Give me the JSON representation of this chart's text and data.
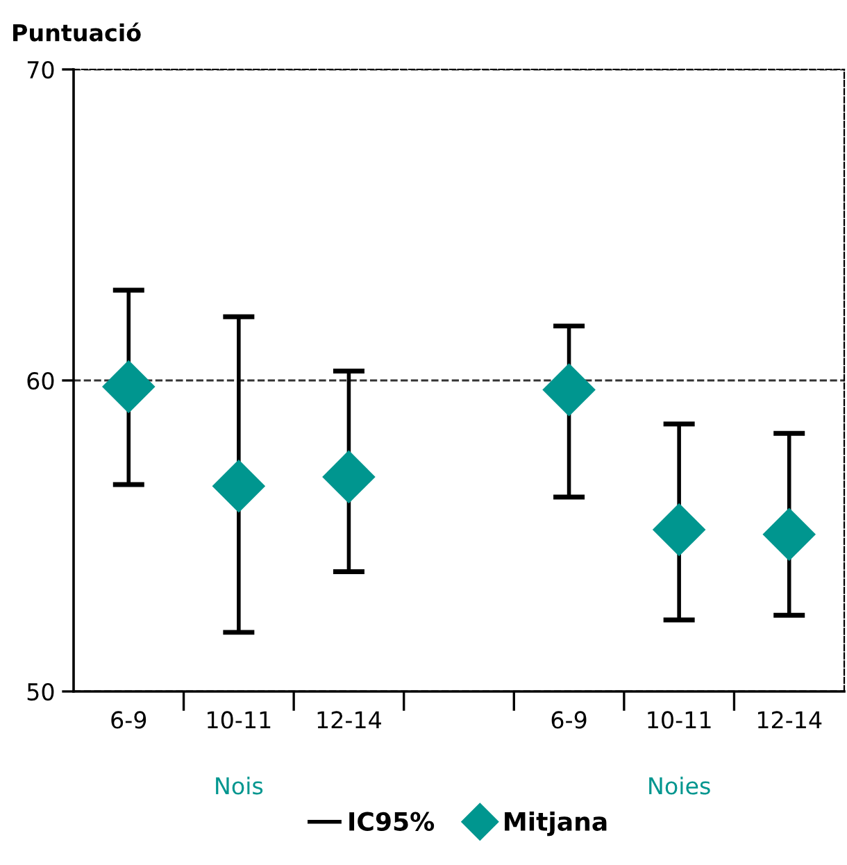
{
  "chart_data": {
    "type": "scatter",
    "ylabel": "Puntuació",
    "categories": [
      "6-9",
      "10-11",
      "12-14",
      null,
      "6-9",
      "10-11",
      "12-14"
    ],
    "series": [
      {
        "name": "Mitjana",
        "color": "#00968f",
        "values": [
          59.8,
          56.6,
          56.9,
          null,
          59.7,
          55.2,
          55.05
        ],
        "errors": [
          [
            56.65,
            62.9
          ],
          [
            51.9,
            62.05
          ],
          [
            53.85,
            60.3
          ],
          null,
          [
            56.25,
            61.75
          ],
          [
            52.3,
            58.6
          ],
          [
            52.45,
            58.3
          ]
        ]
      }
    ],
    "marker": "diamond",
    "annotations": [
      "Nois",
      "Noies",
      "IC95%"
    ],
    "ylim": [
      50,
      70
    ],
    "yticks": [
      50,
      60,
      70
    ],
    "grid": "y",
    "legend": "bottom"
  }
}
